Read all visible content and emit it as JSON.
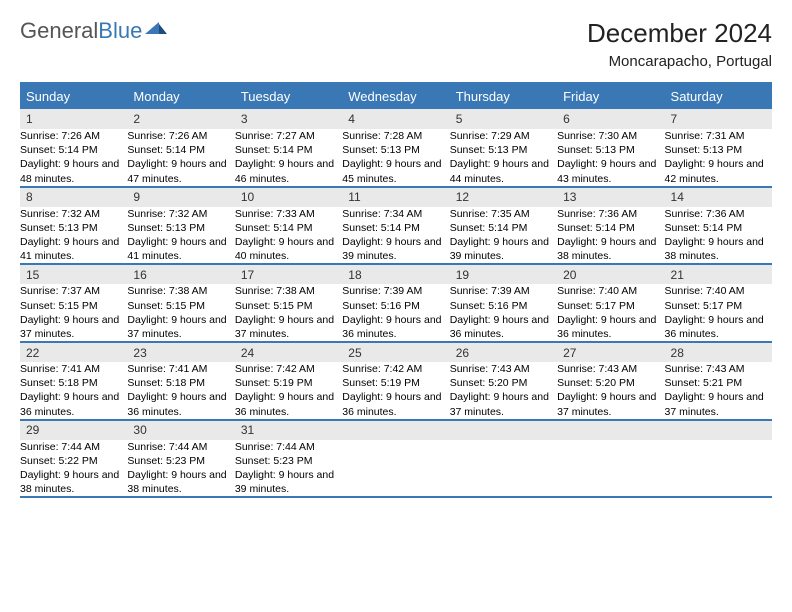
{
  "brand": {
    "part1": "General",
    "part2": "Blue"
  },
  "title": "December 2024",
  "location": "Moncarapacho, Portugal",
  "dow": [
    "Sunday",
    "Monday",
    "Tuesday",
    "Wednesday",
    "Thursday",
    "Friday",
    "Saturday"
  ],
  "colors": {
    "accent": "#3a78b5",
    "header_bg": "#3a78b5",
    "daynum_bg": "#e9e9e9",
    "text": "#000000"
  },
  "weeks": [
    [
      {
        "n": "1",
        "sr": "7:26 AM",
        "ss": "5:14 PM",
        "dl": "9 hours and 48 minutes."
      },
      {
        "n": "2",
        "sr": "7:26 AM",
        "ss": "5:14 PM",
        "dl": "9 hours and 47 minutes."
      },
      {
        "n": "3",
        "sr": "7:27 AM",
        "ss": "5:14 PM",
        "dl": "9 hours and 46 minutes."
      },
      {
        "n": "4",
        "sr": "7:28 AM",
        "ss": "5:13 PM",
        "dl": "9 hours and 45 minutes."
      },
      {
        "n": "5",
        "sr": "7:29 AM",
        "ss": "5:13 PM",
        "dl": "9 hours and 44 minutes."
      },
      {
        "n": "6",
        "sr": "7:30 AM",
        "ss": "5:13 PM",
        "dl": "9 hours and 43 minutes."
      },
      {
        "n": "7",
        "sr": "7:31 AM",
        "ss": "5:13 PM",
        "dl": "9 hours and 42 minutes."
      }
    ],
    [
      {
        "n": "8",
        "sr": "7:32 AM",
        "ss": "5:13 PM",
        "dl": "9 hours and 41 minutes."
      },
      {
        "n": "9",
        "sr": "7:32 AM",
        "ss": "5:13 PM",
        "dl": "9 hours and 41 minutes."
      },
      {
        "n": "10",
        "sr": "7:33 AM",
        "ss": "5:14 PM",
        "dl": "9 hours and 40 minutes."
      },
      {
        "n": "11",
        "sr": "7:34 AM",
        "ss": "5:14 PM",
        "dl": "9 hours and 39 minutes."
      },
      {
        "n": "12",
        "sr": "7:35 AM",
        "ss": "5:14 PM",
        "dl": "9 hours and 39 minutes."
      },
      {
        "n": "13",
        "sr": "7:36 AM",
        "ss": "5:14 PM",
        "dl": "9 hours and 38 minutes."
      },
      {
        "n": "14",
        "sr": "7:36 AM",
        "ss": "5:14 PM",
        "dl": "9 hours and 38 minutes."
      }
    ],
    [
      {
        "n": "15",
        "sr": "7:37 AM",
        "ss": "5:15 PM",
        "dl": "9 hours and 37 minutes."
      },
      {
        "n": "16",
        "sr": "7:38 AM",
        "ss": "5:15 PM",
        "dl": "9 hours and 37 minutes."
      },
      {
        "n": "17",
        "sr": "7:38 AM",
        "ss": "5:15 PM",
        "dl": "9 hours and 37 minutes."
      },
      {
        "n": "18",
        "sr": "7:39 AM",
        "ss": "5:16 PM",
        "dl": "9 hours and 36 minutes."
      },
      {
        "n": "19",
        "sr": "7:39 AM",
        "ss": "5:16 PM",
        "dl": "9 hours and 36 minutes."
      },
      {
        "n": "20",
        "sr": "7:40 AM",
        "ss": "5:17 PM",
        "dl": "9 hours and 36 minutes."
      },
      {
        "n": "21",
        "sr": "7:40 AM",
        "ss": "5:17 PM",
        "dl": "9 hours and 36 minutes."
      }
    ],
    [
      {
        "n": "22",
        "sr": "7:41 AM",
        "ss": "5:18 PM",
        "dl": "9 hours and 36 minutes."
      },
      {
        "n": "23",
        "sr": "7:41 AM",
        "ss": "5:18 PM",
        "dl": "9 hours and 36 minutes."
      },
      {
        "n": "24",
        "sr": "7:42 AM",
        "ss": "5:19 PM",
        "dl": "9 hours and 36 minutes."
      },
      {
        "n": "25",
        "sr": "7:42 AM",
        "ss": "5:19 PM",
        "dl": "9 hours and 36 minutes."
      },
      {
        "n": "26",
        "sr": "7:43 AM",
        "ss": "5:20 PM",
        "dl": "9 hours and 37 minutes."
      },
      {
        "n": "27",
        "sr": "7:43 AM",
        "ss": "5:20 PM",
        "dl": "9 hours and 37 minutes."
      },
      {
        "n": "28",
        "sr": "7:43 AM",
        "ss": "5:21 PM",
        "dl": "9 hours and 37 minutes."
      }
    ],
    [
      {
        "n": "29",
        "sr": "7:44 AM",
        "ss": "5:22 PM",
        "dl": "9 hours and 38 minutes."
      },
      {
        "n": "30",
        "sr": "7:44 AM",
        "ss": "5:23 PM",
        "dl": "9 hours and 38 minutes."
      },
      {
        "n": "31",
        "sr": "7:44 AM",
        "ss": "5:23 PM",
        "dl": "9 hours and 39 minutes."
      },
      null,
      null,
      null,
      null
    ]
  ],
  "labels": {
    "sunrise": "Sunrise:",
    "sunset": "Sunset:",
    "daylight": "Daylight:"
  }
}
